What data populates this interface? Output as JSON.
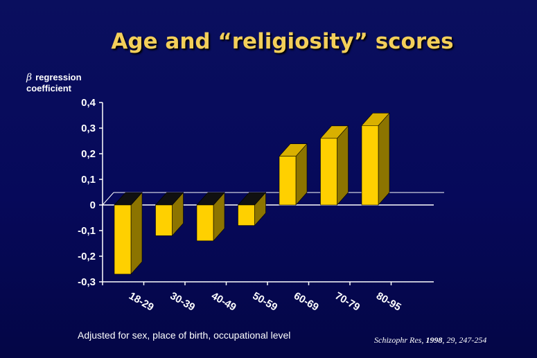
{
  "slide": {
    "title": "Age and “religiosity” scores",
    "ylabel_symbol": "β",
    "ylabel_line1": "regression",
    "ylabel_line2": "coefficient",
    "footnote": "Adjusted for sex, place of birth, occupational level",
    "citation_journal": "Schizophr Res,",
    "citation_year": "1998",
    "citation_rest": ", 29, 247-254"
  },
  "chart_data": {
    "type": "bar",
    "title": "Age and “religiosity” scores",
    "ylabel": "β regression coefficient",
    "xlabel": "",
    "categories": [
      "18-29",
      "30-39",
      "40-49",
      "50-59",
      "60-69",
      "70-79",
      "80-95"
    ],
    "values": [
      -0.27,
      -0.12,
      -0.14,
      -0.08,
      0.19,
      0.26,
      0.31
    ],
    "ylim": [
      -0.3,
      0.4
    ],
    "yticks": [
      0.4,
      0.3,
      0.2,
      0.1,
      0,
      -0.1,
      -0.2,
      -0.3
    ],
    "ytick_labels": [
      "0,4",
      "0,3",
      "0,2",
      "0,1",
      "0",
      "-0,1",
      "-0,2",
      "-0,3"
    ],
    "grid": false,
    "colors": {
      "bar_front": "#ffd000",
      "bar_side": "#8c7400",
      "bar_top": "#d9b000",
      "bar_top_negative": "#111111",
      "axis": "#ffffff"
    }
  }
}
